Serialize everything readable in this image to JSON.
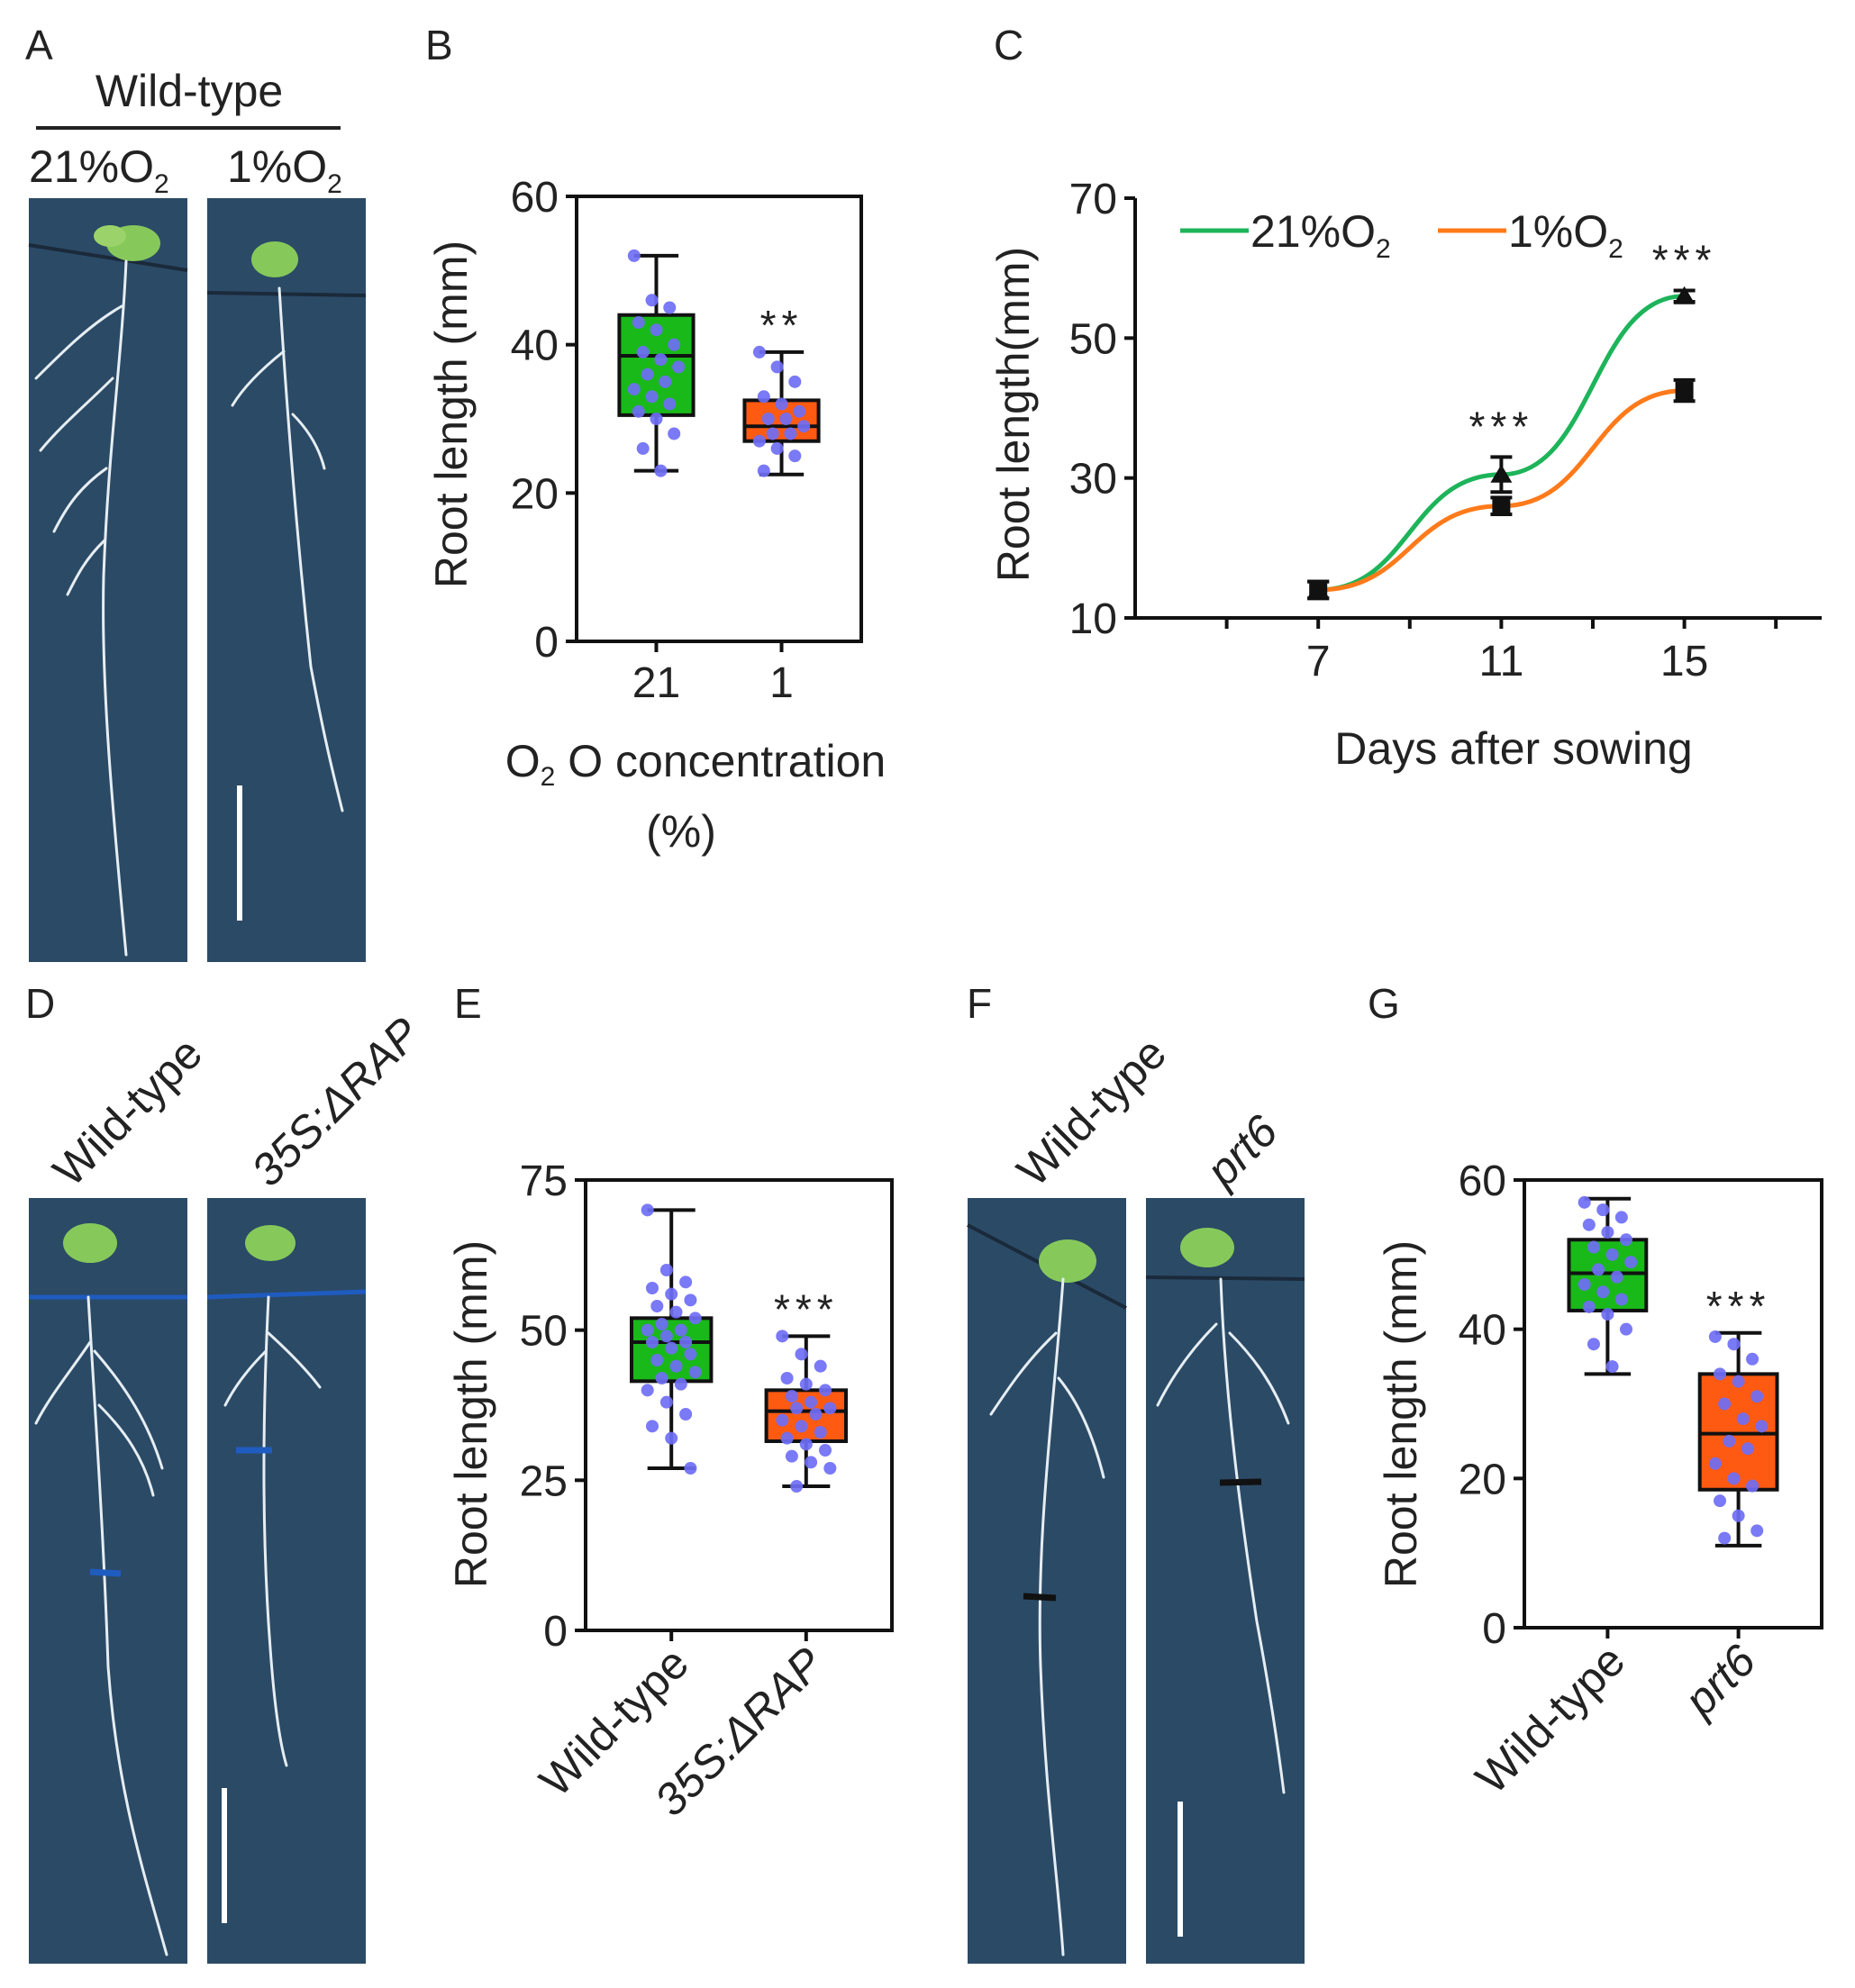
{
  "panels": {
    "A": {
      "label": "A",
      "genotype": "Wild-type",
      "col_left": "21%O",
      "col_right": "1%O",
      "subscript": "2"
    },
    "D": {
      "label": "D",
      "left": "Wild-type",
      "right": "35S:ΔRAP"
    },
    "F": {
      "label": "F",
      "left": "Wild-type",
      "right": "prt6"
    }
  },
  "colors": {
    "green_box": "#19b919",
    "orange_box": "#ff5a12",
    "dot": "#6f6ef5",
    "line_21": "#1db45a",
    "line_1": "#ff7a1a",
    "photo": "#2b4a66"
  },
  "chart_data": [
    {
      "panel": "B",
      "type": "box",
      "ylabel": "Root length (mm)",
      "xlabel_line1": "O concentration",
      "xlabel_sub": "2",
      "xlabel_line2": "(%)",
      "ylim": [
        0,
        60
      ],
      "yticks": [
        "0",
        "20",
        "40",
        "60"
      ],
      "categories": [
        "21",
        "1"
      ],
      "boxes": [
        {
          "min": 23,
          "q1": 30.5,
          "median": 38.5,
          "q3": 44,
          "max": 52,
          "points": [
            52,
            46,
            45,
            43,
            42,
            40,
            39,
            38,
            37,
            36,
            35,
            34,
            33,
            32,
            31,
            30,
            28,
            26,
            23
          ]
        },
        {
          "min": 22.5,
          "q1": 27,
          "median": 29,
          "q3": 32.5,
          "max": 39,
          "points": [
            39,
            37,
            35,
            33,
            32,
            31,
            30,
            30,
            29,
            28,
            28,
            27,
            26,
            25,
            23
          ]
        }
      ],
      "significance": [
        "",
        "**"
      ]
    },
    {
      "panel": "C",
      "type": "line",
      "ylabel": "Root length(mm)",
      "xlabel": "Days after sowing",
      "ylim": [
        10,
        70
      ],
      "xlim": [
        3,
        18
      ],
      "yticks": [
        "10",
        "30",
        "50",
        "70"
      ],
      "xticks": [
        "7",
        "11",
        "15"
      ],
      "x": [
        7,
        11,
        15
      ],
      "series": [
        {
          "name": "21%O",
          "sub": "2",
          "values": [
            14,
            30.5,
            56
          ],
          "errors": [
            1.2,
            2.5,
            0.8
          ]
        },
        {
          "name": "1%O",
          "sub": "2",
          "values": [
            14,
            26,
            42.5
          ],
          "errors": [
            1.2,
            1.2,
            1.5
          ]
        }
      ],
      "significance": [
        "",
        "***",
        "***"
      ]
    },
    {
      "panel": "E",
      "type": "box",
      "ylabel": "Root length (mm)",
      "ylim": [
        0,
        75
      ],
      "yticks": [
        "0",
        "25",
        "50",
        "75"
      ],
      "categories": [
        "Wild-type",
        "35S:ΔRAP"
      ],
      "boxes": [
        {
          "min": 27,
          "q1": 41.5,
          "median": 48,
          "q3": 52,
          "max": 70,
          "points": [
            70,
            60,
            58,
            57,
            56,
            55,
            54,
            53,
            52,
            51,
            50,
            50,
            49,
            48,
            48,
            47,
            46,
            45,
            44,
            43,
            42,
            41,
            40,
            38,
            36,
            34,
            32,
            27
          ]
        },
        {
          "min": 24,
          "q1": 31.5,
          "median": 36.5,
          "q3": 40,
          "max": 49,
          "points": [
            49,
            46,
            44,
            42,
            41,
            40,
            39,
            38,
            37,
            37,
            36,
            35,
            34,
            33,
            32,
            31,
            30,
            29,
            28,
            27,
            24
          ]
        }
      ],
      "significance": [
        "",
        "***"
      ]
    },
    {
      "panel": "G",
      "type": "box",
      "ylabel": "Root length (mm)",
      "ylim": [
        0,
        60
      ],
      "yticks": [
        "0",
        "20",
        "40",
        "60"
      ],
      "categories": [
        "Wild-type",
        "prt6"
      ],
      "boxes": [
        {
          "min": 34,
          "q1": 42.5,
          "median": 47.5,
          "q3": 52,
          "max": 57.5,
          "points": [
            57,
            56,
            55,
            54,
            53,
            52,
            51,
            50,
            49,
            48,
            47,
            46,
            45,
            44,
            43,
            42,
            40,
            38,
            35
          ]
        },
        {
          "min": 11,
          "q1": 18.5,
          "median": 26,
          "q3": 34,
          "max": 39.5,
          "points": [
            39,
            38,
            36,
            34,
            33,
            31,
            30,
            28,
            27,
            25,
            24,
            22,
            20,
            19,
            17,
            15,
            13,
            12
          ]
        }
      ],
      "significance": [
        "",
        "***"
      ]
    }
  ]
}
